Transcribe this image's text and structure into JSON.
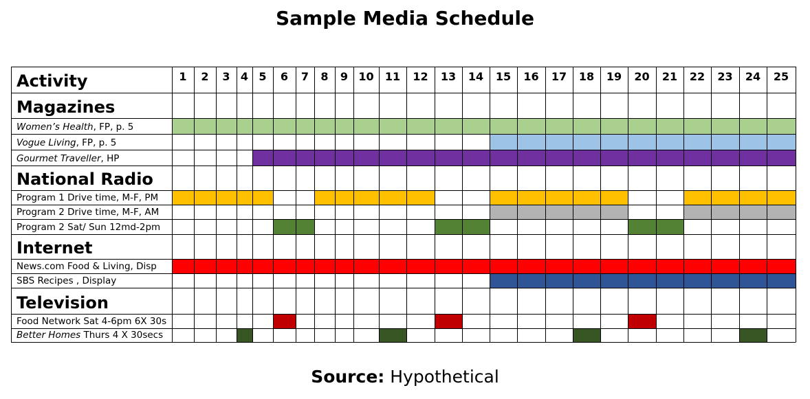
{
  "title": "Sample Media Schedule",
  "source": {
    "label": "Source:",
    "value": "Hypothetical"
  },
  "chart_data": {
    "type": "table",
    "header_label": "Activity",
    "weeks": [
      1,
      2,
      3,
      4,
      5,
      6,
      7,
      8,
      9,
      10,
      11,
      12,
      13,
      14,
      15,
      16,
      17,
      18,
      19,
      20,
      21,
      22,
      23,
      24,
      25
    ],
    "rows": [
      {
        "kind": "section",
        "label": "Magazines"
      },
      {
        "kind": "activity",
        "label_parts": [
          {
            "t": "Women’s Health",
            "i": true
          },
          {
            "t": ", FP, p. 5",
            "i": false
          }
        ],
        "color": "#a9d08e",
        "weeks": [
          1,
          2,
          3,
          4,
          5,
          6,
          7,
          8,
          9,
          10,
          11,
          12,
          13,
          14,
          15,
          16,
          17,
          18,
          19,
          20,
          21,
          22,
          23,
          24,
          25
        ]
      },
      {
        "kind": "activity",
        "label_parts": [
          {
            "t": "Vogue Living",
            "i": true
          },
          {
            "t": ", FP, p. 5",
            "i": false
          }
        ],
        "color": "#9dc3e6",
        "weeks": [
          15,
          16,
          17,
          18,
          19,
          20,
          21,
          22,
          23,
          24,
          25
        ]
      },
      {
        "kind": "activity",
        "label_parts": [
          {
            "t": "Gourmet Traveller",
            "i": true
          },
          {
            "t": ", HP",
            "i": false
          }
        ],
        "color": "#7030a0",
        "weeks": [
          5,
          6,
          7,
          8,
          9,
          10,
          11,
          12,
          13,
          14,
          15,
          16,
          17,
          18,
          19,
          20,
          21,
          22,
          23,
          24,
          25
        ]
      },
      {
        "kind": "section",
        "label": "National Radio"
      },
      {
        "kind": "activity",
        "label_parts": [
          {
            "t": "Program 1 Drive time, M-F, PM",
            "i": false
          }
        ],
        "color": "#ffc000",
        "weeks": [
          1,
          2,
          3,
          4,
          5,
          8,
          9,
          10,
          11,
          12,
          15,
          16,
          17,
          18,
          19,
          22,
          23,
          24,
          25
        ]
      },
      {
        "kind": "activity",
        "label_parts": [
          {
            "t": "Program 2 Drive time, M-F, AM",
            "i": false
          }
        ],
        "color": "#b3b3b3",
        "weeks": [
          15,
          16,
          17,
          18,
          19,
          22,
          23,
          24,
          25
        ]
      },
      {
        "kind": "activity",
        "label_parts": [
          {
            "t": "Program 2 Sat/ Sun  12md-2pm",
            "i": false
          }
        ],
        "color": "#548235",
        "weeks": [
          6,
          7,
          13,
          14,
          20,
          21
        ]
      },
      {
        "kind": "section",
        "label": "Internet"
      },
      {
        "kind": "activity",
        "label_parts": [
          {
            "t": "News.com Food & Living, Disp",
            "i": false
          }
        ],
        "color": "#ff0000",
        "weeks": [
          1,
          2,
          3,
          4,
          5,
          6,
          7,
          8,
          9,
          10,
          11,
          12,
          13,
          14,
          15,
          16,
          17,
          18,
          19,
          20,
          21,
          22,
          23,
          24,
          25
        ]
      },
      {
        "kind": "activity",
        "label_parts": [
          {
            "t": "SBS Recipes , Display",
            "i": false
          }
        ],
        "color": "#2f5597",
        "weeks": [
          15,
          16,
          17,
          18,
          19,
          20,
          21,
          22,
          23,
          24,
          25
        ]
      },
      {
        "kind": "section",
        "label": "Television"
      },
      {
        "kind": "activity",
        "label_parts": [
          {
            "t": "Food Network  Sat 4-6pm 6X 30s",
            "i": false
          }
        ],
        "color": "#c00000",
        "weeks": [
          6,
          13,
          20
        ]
      },
      {
        "kind": "activity",
        "label_parts": [
          {
            "t": "Better Homes",
            "i": true
          },
          {
            "t": "  Thurs 4 X 30secs",
            "i": false
          }
        ],
        "color": "#375623",
        "weeks": [
          4,
          11,
          18,
          24
        ]
      }
    ]
  }
}
